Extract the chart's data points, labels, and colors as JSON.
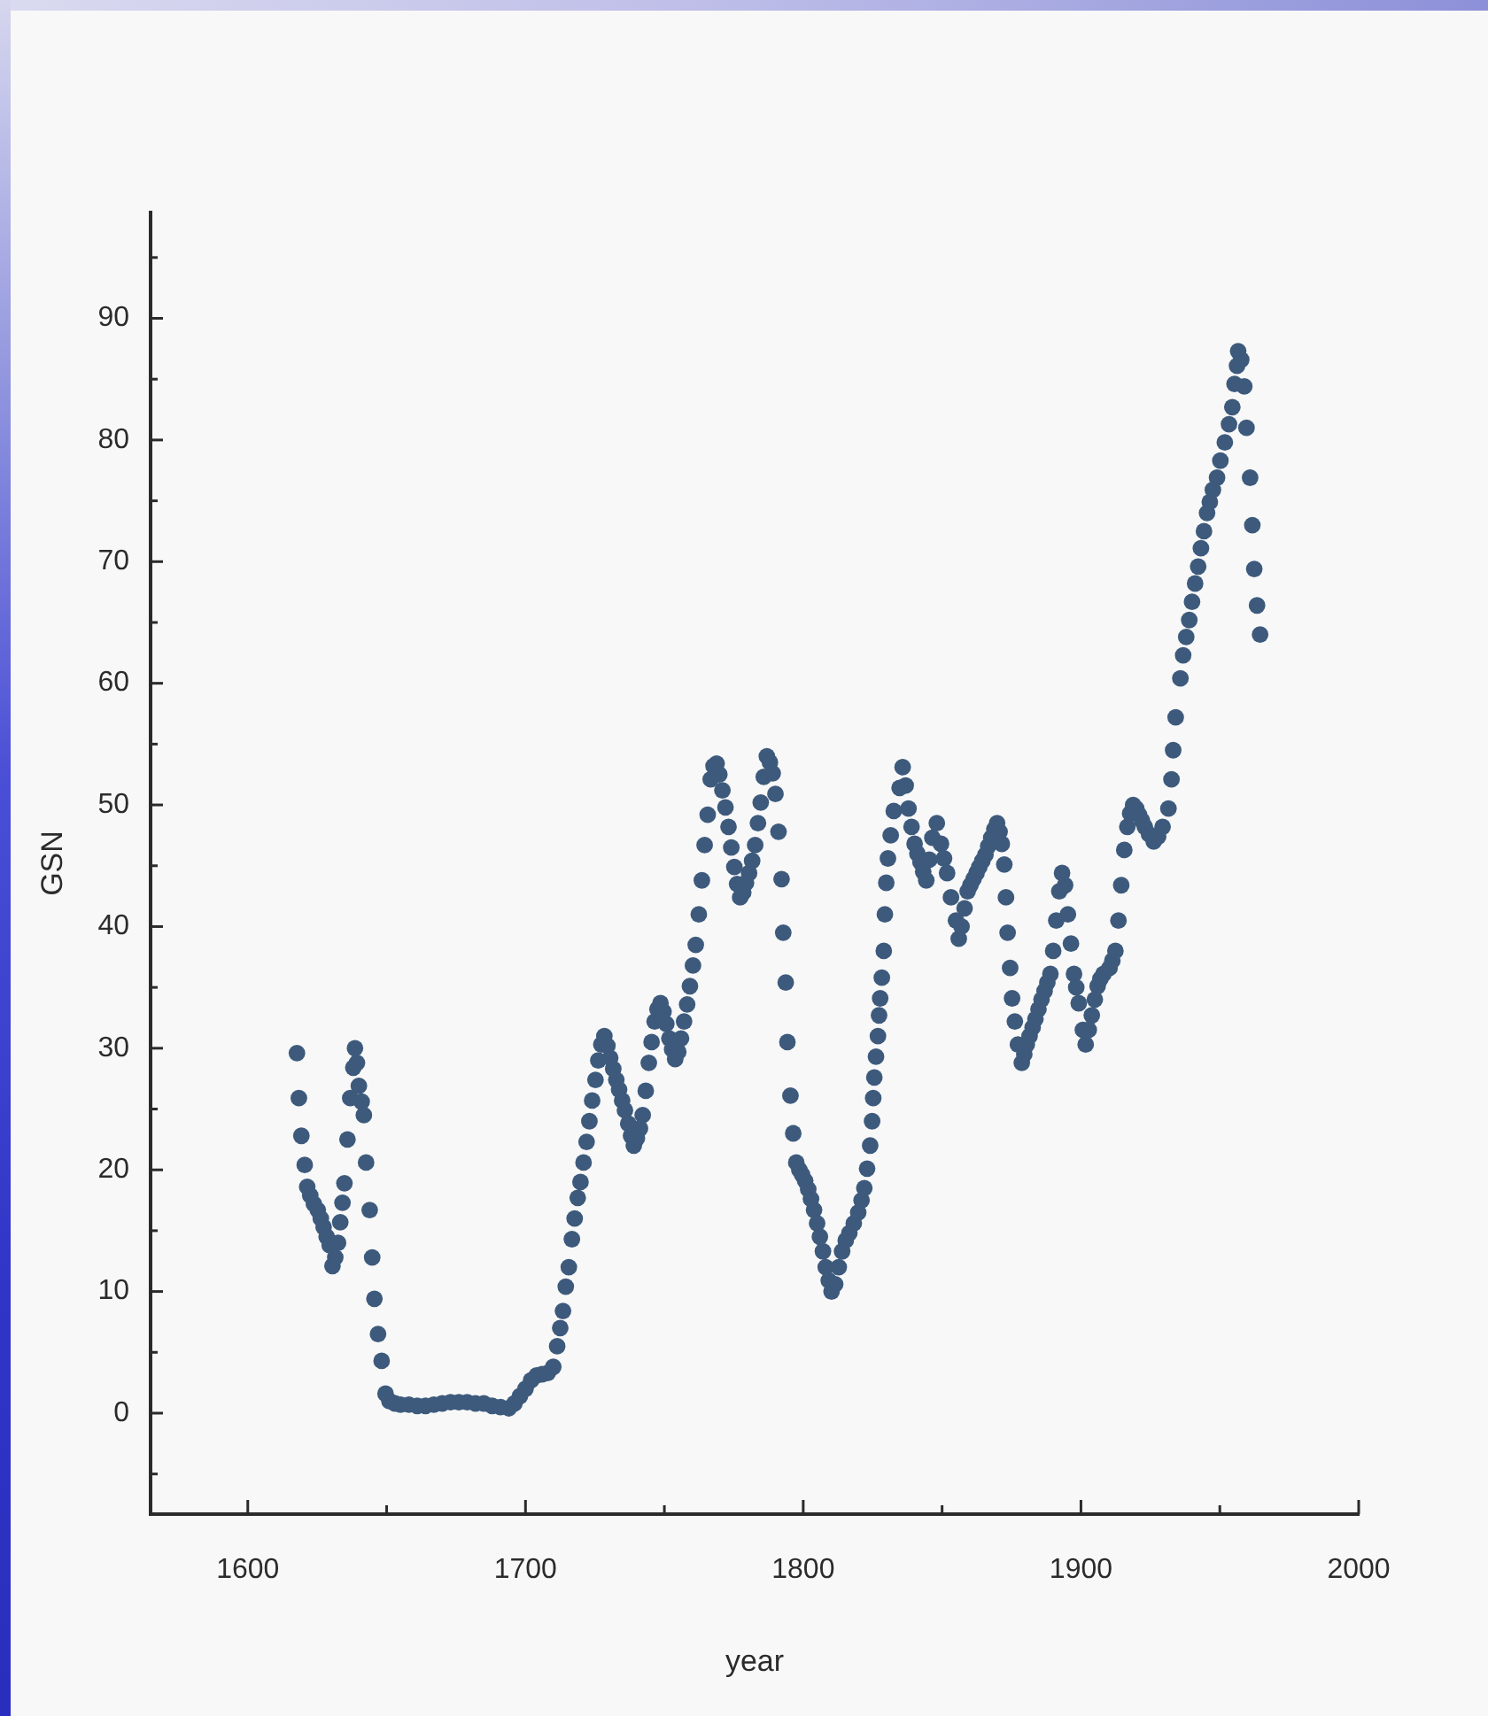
{
  "chart_data": {
    "type": "scatter",
    "xlabel": "year",
    "ylabel": "GSN",
    "color": "#3d5a7c",
    "marker": "circle",
    "xlim": [
      1565,
      2000
    ],
    "ylim": [
      -8.3,
      98.7
    ],
    "xticks": [
      1600,
      {
        "value": 1650,
        "label": null
      },
      1700,
      {
        "value": 1750,
        "label": null
      },
      1800,
      {
        "value": 1850,
        "label": null
      },
      1900,
      {
        "value": 1950,
        "label": null
      },
      2000
    ],
    "yticks": [
      {
        "value": -5,
        "label": null
      },
      0,
      {
        "value": 5,
        "label": null
      },
      10,
      {
        "value": 15,
        "label": null
      },
      20,
      {
        "value": 25,
        "label": null
      },
      30,
      {
        "value": 35,
        "label": null
      },
      40,
      {
        "value": 45,
        "label": null
      },
      50,
      {
        "value": 55,
        "label": null
      },
      60,
      {
        "value": 65,
        "label": null
      },
      70,
      {
        "value": 75,
        "label": null
      },
      80,
      {
        "value": 85,
        "label": null
      },
      90,
      {
        "value": 95,
        "label": null
      }
    ],
    "x": [
      1617.7,
      1618.4,
      1619.3,
      1620.5,
      1621.4,
      1622.5,
      1623.8,
      1625.2,
      1626.3,
      1627.3,
      1628.4,
      1629.5,
      1630.5,
      1631.5,
      1632.5,
      1633.3,
      1634.1,
      1634.8,
      1635.9,
      1636.9,
      1638,
      1638.6,
      1639.3,
      1640,
      1641,
      1641.8,
      1642.6,
      1643.9,
      1644.8,
      1645.6,
      1646.9,
      1648.2,
      1649.6,
      1651,
      1653,
      1655,
      1658,
      1661,
      1664,
      1667,
      1670,
      1673,
      1676,
      1679,
      1682,
      1685,
      1688,
      1691,
      1694,
      1696,
      1698,
      1700,
      1702,
      1704,
      1706,
      1708,
      1710,
      1711.4,
      1712.5,
      1713.5,
      1714.5,
      1715.6,
      1716.7,
      1717.7,
      1718.8,
      1719.8,
      1720.9,
      1722,
      1723,
      1724,
      1725.2,
      1726.2,
      1727.3,
      1728.4,
      1729.5,
      1730.5,
      1731.6,
      1732.7,
      1733.7,
      1734.8,
      1735.8,
      1737,
      1738,
      1739,
      1740.1,
      1741.2,
      1742.2,
      1743.3,
      1744.4,
      1745.4,
      1746.5,
      1747.5,
      1748.6,
      1749.7,
      1750.7,
      1751.8,
      1752.8,
      1753.9,
      1755,
      1756,
      1757.1,
      1758.2,
      1759.2,
      1760.3,
      1761.3,
      1762.4,
      1763.5,
      1764.5,
      1765.6,
      1766.7,
      1767.7,
      1768.8,
      1769.8,
      1770.9,
      1772,
      1773.1,
      1774.1,
      1775.2,
      1776.2,
      1777.3,
      1778.4,
      1779.4,
      1780.5,
      1781.6,
      1782.7,
      1783.7,
      1784.7,
      1785.8,
      1786.9,
      1788,
      1789,
      1790,
      1791.1,
      1792.2,
      1792.8,
      1793.7,
      1794.3,
      1795.4,
      1796.4,
      1797.5,
      1798.6,
      1799.6,
      1800.7,
      1801.8,
      1802.8,
      1803.9,
      1805,
      1806,
      1807.1,
      1808.1,
      1809.2,
      1810.2,
      1811.5,
      1812.8,
      1814,
      1815.3,
      1816.6,
      1818.2,
      1819.8,
      1821,
      1822,
      1823,
      1824.1,
      1824.8,
      1825.2,
      1825.6,
      1826.2,
      1826.9,
      1827.3,
      1827.7,
      1828.3,
      1829,
      1829.4,
      1829.9,
      1830.5,
      1831.5,
      1832.6,
      1834.7,
      1835.8,
      1836.9,
      1837.9,
      1839,
      1840.1,
      1841.1,
      1842.2,
      1843.2,
      1844.3,
      1845.4,
      1846.5,
      1848.1,
      1849.6,
      1850.7,
      1851.8,
      1853.2,
      1855,
      1856,
      1857,
      1858.1,
      1859.2,
      1860.2,
      1861.3,
      1862.4,
      1863.4,
      1864.5,
      1865.6,
      1866.6,
      1867.7,
      1868.8,
      1869.8,
      1870.7,
      1871.5,
      1872.4,
      1873,
      1873.6,
      1874.5,
      1875.2,
      1876.2,
      1877.3,
      1878.7,
      1879.6,
      1880.5,
      1881.5,
      1882.6,
      1883.6,
      1884.7,
      1885.8,
      1886.9,
      1887.9,
      1889,
      1890,
      1891.1,
      1892.2,
      1893.2,
      1894.3,
      1895.3,
      1896.4,
      1897.5,
      1898.3,
      1899.2,
      1900.7,
      1901.7,
      1902.8,
      1903.9,
      1905,
      1906,
      1907,
      1908.1,
      1910.3,
      1911.3,
      1912.4,
      1913.5,
      1914.5,
      1915.6,
      1916.7,
      1917.7,
      1918.8,
      1919.9,
      1920.9,
      1922,
      1923,
      1924.5,
      1926.2,
      1927.8,
      1929.4,
      1931.5,
      1932.6,
      1933.2,
      1934.1,
      1935.8,
      1936.8,
      1937.9,
      1939,
      1940,
      1941.1,
      1942.2,
      1943.2,
      1944.3,
      1945.4,
      1946.4,
      1947.5,
      1949,
      1950.2,
      1951.8,
      1953.3,
      1954.5,
      1955.3,
      1956.2,
      1956.6,
      1957.7,
      1958.8,
      1959.6,
      1960.9,
      1961.7,
      1962.4,
      1963.4,
      1964.5
    ],
    "values": [
      29.6,
      25.9,
      22.8,
      20.4,
      18.6,
      17.9,
      17.2,
      16.7,
      16,
      15.3,
      14.5,
      13.8,
      12.1,
      12.8,
      14,
      15.7,
      17.3,
      18.9,
      22.5,
      25.9,
      28.4,
      30,
      28.8,
      26.9,
      25.6,
      24.5,
      20.6,
      16.7,
      12.8,
      9.4,
      6.5,
      4.3,
      1.6,
      1.0,
      0.8,
      0.7,
      0.7,
      0.6,
      0.6,
      0.7,
      0.8,
      0.9,
      0.9,
      0.9,
      0.8,
      0.8,
      0.6,
      0.5,
      0.4,
      0.8,
      1.4,
      2.0,
      2.7,
      3.1,
      3.2,
      3.3,
      3.8,
      5.5,
      7,
      8.4,
      10.4,
      12,
      14.3,
      16,
      17.7,
      19,
      20.6,
      22.3,
      24,
      25.7,
      27.4,
      29,
      30.3,
      31,
      30.2,
      29.2,
      28.3,
      27.4,
      26.6,
      25.7,
      24.9,
      23.8,
      22.8,
      22,
      22.6,
      23.4,
      24.5,
      26.5,
      28.8,
      30.5,
      32.2,
      33.2,
      33.7,
      33,
      32,
      30.8,
      29.9,
      29.1,
      29.7,
      30.8,
      32.2,
      33.6,
      35.1,
      36.8,
      38.5,
      41,
      43.8,
      46.7,
      49.2,
      52.1,
      53.2,
      53.4,
      52.5,
      51.2,
      49.8,
      48.2,
      46.5,
      44.9,
      43.5,
      42.4,
      42.8,
      43.6,
      44.4,
      45.4,
      46.7,
      48.5,
      50.2,
      52.3,
      54,
      53.5,
      52.6,
      50.9,
      47.8,
      43.9,
      39.5,
      35.4,
      30.5,
      26.1,
      23,
      20.6,
      20,
      19.6,
      19.1,
      18.4,
      17.6,
      16.7,
      15.6,
      14.5,
      13.3,
      12,
      10.9,
      10,
      10.6,
      12,
      13.3,
      14.2,
      14.8,
      15.6,
      16.5,
      17.5,
      18.5,
      20.1,
      22,
      24,
      25.9,
      27.6,
      29.3,
      31,
      32.7,
      34.1,
      35.8,
      38,
      41,
      43.6,
      45.6,
      47.5,
      49.5,
      51.4,
      53.1,
      51.6,
      49.7,
      48.2,
      46.8,
      46,
      45.3,
      44.5,
      43.8,
      45.5,
      47.3,
      48.5,
      46.8,
      45.6,
      44.4,
      42.4,
      40.5,
      39,
      40,
      41.5,
      42.9,
      43.4,
      43.9,
      44.4,
      44.9,
      45.4,
      45.9,
      46.6,
      47.3,
      48,
      48.5,
      47.8,
      46.8,
      45.1,
      42.4,
      39.5,
      36.6,
      34.1,
      32.2,
      30.3,
      28.8,
      29.5,
      30.3,
      31,
      31.7,
      32.4,
      33.2,
      34,
      34.7,
      35.4,
      36.1,
      38,
      40.5,
      42.9,
      44.4,
      43.4,
      41,
      38.6,
      36.1,
      35,
      33.7,
      31.5,
      30.3,
      31.5,
      32.7,
      34,
      35.1,
      35.7,
      36.1,
      36.6,
      37.2,
      38,
      40.5,
      43.4,
      46.3,
      48.2,
      49.3,
      50,
      49.7,
      49.2,
      48.7,
      48.2,
      47.6,
      47,
      47.4,
      48.2,
      49.7,
      52.1,
      54.5,
      57.2,
      60.4,
      62.3,
      63.8,
      65.2,
      66.7,
      68.2,
      69.6,
      71.1,
      72.5,
      74,
      74.9,
      75.9,
      76.9,
      78.3,
      79.8,
      81.3,
      82.7,
      84.6,
      86.1,
      87.3,
      86.6,
      84.4,
      81,
      76.9,
      73,
      69.4,
      66.4,
      64
    ]
  }
}
